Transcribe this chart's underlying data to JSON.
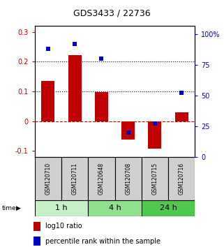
{
  "title": "GDS3433 / 22736",
  "samples": [
    "GSM120710",
    "GSM120711",
    "GSM120648",
    "GSM120708",
    "GSM120715",
    "GSM120716"
  ],
  "groups": [
    {
      "label": "1 h",
      "indices": [
        0,
        1
      ],
      "color": "#c8f0c8"
    },
    {
      "label": "4 h",
      "indices": [
        2,
        3
      ],
      "color": "#90e090"
    },
    {
      "label": "24 h",
      "indices": [
        4,
        5
      ],
      "color": "#50c850"
    }
  ],
  "log10_ratio": [
    0.135,
    0.222,
    0.098,
    -0.062,
    -0.092,
    0.03
  ],
  "percentile_rank": [
    88,
    92,
    80,
    20,
    27,
    52
  ],
  "bar_color": "#c00000",
  "dot_color": "#0000cc",
  "ylim_left": [
    -0.12,
    0.32
  ],
  "ylim_right": [
    0,
    106.67
  ],
  "yticks_left": [
    -0.1,
    0.0,
    0.1,
    0.2,
    0.3
  ],
  "yticks_right": [
    0,
    25,
    50,
    75,
    100
  ],
  "ytick_labels_left": [
    "-0.1",
    "0",
    "0.1",
    "0.2",
    "0.3"
  ],
  "ytick_labels_right": [
    "0",
    "25",
    "50",
    "75",
    "100%"
  ],
  "hlines": [
    0.1,
    0.2
  ],
  "zero_line_color": "#cc0000",
  "background_color": "#ffffff",
  "sample_box_color": "#d0d0d0",
  "legend_red_label": "log10 ratio",
  "legend_blue_label": "percentile rank within the sample",
  "title_fontsize": 9,
  "tick_fontsize": 7,
  "sample_fontsize": 5.5,
  "group_fontsize": 8,
  "legend_fontsize": 7
}
